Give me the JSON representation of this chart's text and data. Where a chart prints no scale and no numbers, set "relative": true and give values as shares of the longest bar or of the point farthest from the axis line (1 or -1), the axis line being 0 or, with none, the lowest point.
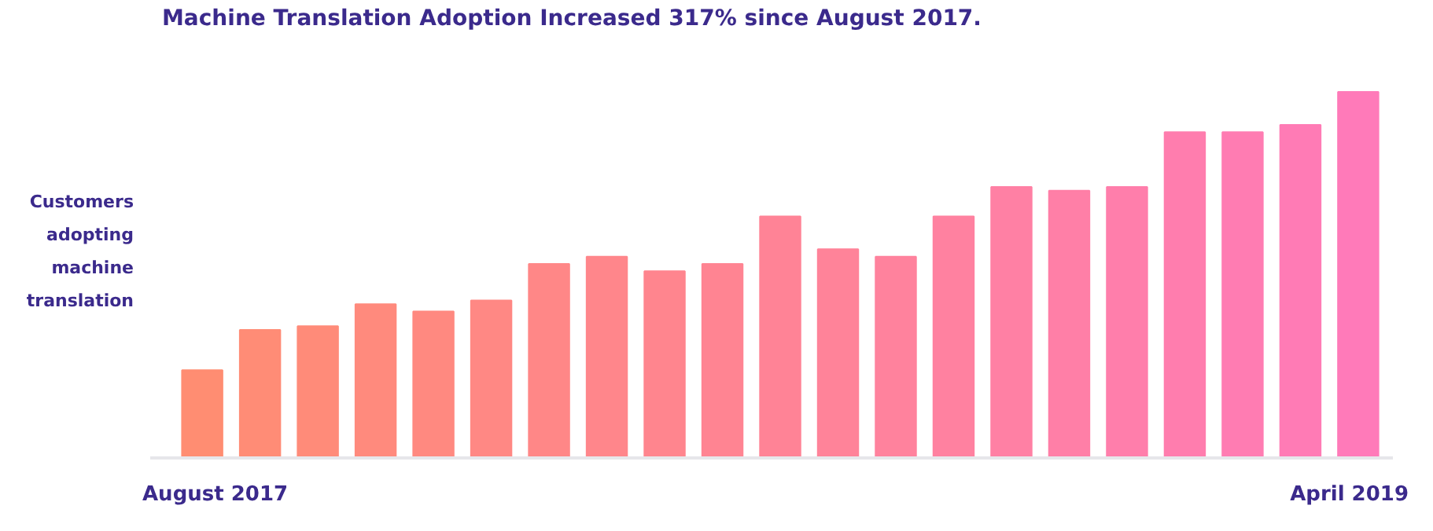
{
  "chart_data": {
    "type": "bar",
    "title": "Machine Translation Adoption Increased 317% since August 2017.",
    "ylabel": "Customers adopting machine translation",
    "relative": true,
    "categories": [
      "August 2017",
      null,
      null,
      null,
      null,
      null,
      null,
      null,
      null,
      null,
      null,
      null,
      null,
      null,
      null,
      null,
      null,
      null,
      null,
      null,
      "April 2019"
    ],
    "values": [
      0.24,
      0.35,
      0.36,
      0.42,
      0.4,
      0.43,
      0.53,
      0.55,
      0.51,
      0.53,
      0.66,
      0.57,
      0.55,
      0.66,
      0.74,
      0.73,
      0.74,
      0.89,
      0.89,
      0.91,
      1
    ],
    "colors": [
      "#ff8d72",
      "#ff8c76",
      "#ff8b79",
      "#ff8a7d",
      "#ff8980",
      "#ff8884",
      "#ff8787",
      "#ff868b",
      "#ff858e",
      "#ff8492",
      "#ff8396",
      "#ff8399",
      "#ff829d",
      "#ff81a0",
      "#ff80a4",
      "#ff7fa7",
      "#ff7eab",
      "#ff7dae",
      "#ff7cb2",
      "#ff7bb5",
      "#ff7ab9"
    ]
  }
}
